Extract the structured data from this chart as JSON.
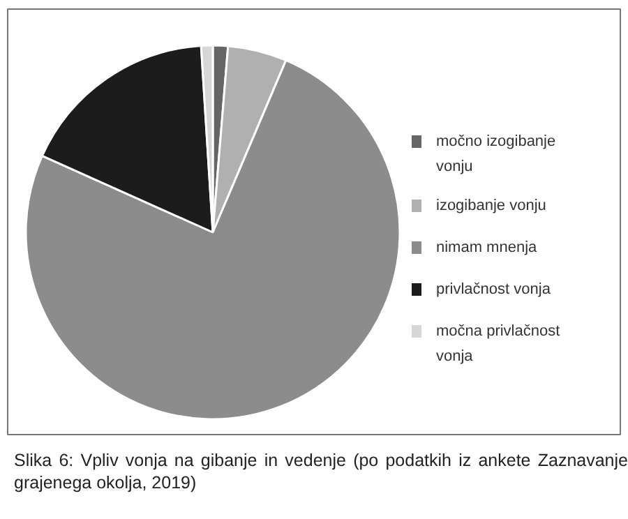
{
  "chart_data": {
    "type": "pie",
    "categories": [
      "močno izogibanje vonju",
      "izogibanje vonju",
      "nimam mnenja",
      "privlačnost vonja",
      "močna privlačnost vonja"
    ],
    "values": [
      1.3,
      5.1,
      75.3,
      17.3,
      1.0
    ],
    "colors": [
      "#666666",
      "#b0b0b0",
      "#8c8c8c",
      "#1c1c1c",
      "#d6d6d6"
    ],
    "legend": "right",
    "annotations": [
      "Slika 6: Vpliv vonja na gibanje in vedenje (po podatkih iz ankete Zaznavanje grajenega okolja, 2019)"
    ]
  }
}
